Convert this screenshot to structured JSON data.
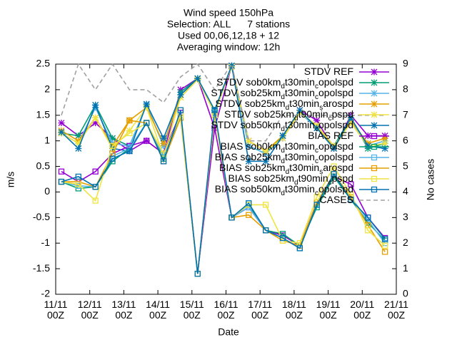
{
  "chart_data": {
    "type": "line",
    "title": [
      "Wind speed 150hPa",
      "Selection: ALL      7 stations",
      "Used 00,06,12,18 + 12",
      "Averaging window: 12h"
    ],
    "xlabel": "Date",
    "ylabel": "m/s",
    "y2label": "No cases",
    "x": [
      4,
      16,
      28,
      40,
      52,
      64,
      76,
      88,
      100,
      112,
      124,
      136,
      148,
      160,
      172,
      184,
      196,
      208,
      220,
      232
    ],
    "xlim": [
      0,
      240
    ],
    "xticks": [
      {
        "value": 0,
        "label": "11/11 00Z"
      },
      {
        "value": 24,
        "label": "12/11 00Z"
      },
      {
        "value": 48,
        "label": "13/11 00Z"
      },
      {
        "value": 72,
        "label": "14/11 00Z"
      },
      {
        "value": 96,
        "label": "15/11 00Z"
      },
      {
        "value": 120,
        "label": "16/11 00Z"
      },
      {
        "value": 144,
        "label": "17/11 00Z"
      },
      {
        "value": 168,
        "label": "18/11 00Z"
      },
      {
        "value": 192,
        "label": "19/11 00Z"
      },
      {
        "value": 216,
        "label": "20/11 00Z"
      },
      {
        "value": 240,
        "label": "21/11 00Z"
      }
    ],
    "ylim": [
      -2,
      2.5
    ],
    "yticks": [
      -2,
      -1.5,
      -1,
      -0.5,
      0,
      0.5,
      1,
      1.5,
      2,
      2.5
    ],
    "y2lim": [
      0,
      9
    ],
    "y2ticks": [
      0,
      1,
      2,
      3,
      4,
      5,
      6,
      7,
      8,
      9
    ],
    "grid": false,
    "legend": "top-right",
    "series": [
      {
        "name": "STDV REF",
        "color": "#9400d3",
        "marker": "star",
        "values": [
          1.35,
          1.1,
          1.35,
          1.05,
          0.8,
          1.0,
          0.75,
          2.0,
          2.22,
          1.25,
          2.47,
          1.0,
          0.8,
          1.05,
          1.6,
          1.4,
          0.85,
          1.5,
          1.1,
          1.1
        ]
      },
      {
        "name": "STDV sob0km_dt30min_copolspd",
        "color": "#009e73",
        "marker": "star",
        "values": [
          1.15,
          1.1,
          1.7,
          1.05,
          0.9,
          1.7,
          0.9,
          1.95,
          2.22,
          1.6,
          2.47,
          0.9,
          0.75,
          1.1,
          1.55,
          1.3,
          0.9,
          1.45,
          0.85,
          0.95
        ]
      },
      {
        "name": "STDV sob25km_dt30min_copolspd",
        "color": "#56b4e9",
        "marker": "star",
        "values": [
          1.15,
          0.95,
          1.65,
          0.95,
          0.9,
          1.7,
          0.9,
          1.9,
          2.2,
          1.6,
          2.47,
          0.9,
          0.75,
          1.05,
          1.55,
          1.25,
          0.85,
          1.4,
          0.9,
          1.0
        ]
      },
      {
        "name": "STDV sob25km_dt30min_sarospd",
        "color": "#e69f00",
        "marker": "star",
        "values": [
          1.2,
          1.0,
          1.45,
          0.9,
          1.4,
          1.65,
          0.95,
          1.85,
          2.2,
          1.55,
          2.45,
          1.0,
          0.8,
          1.1,
          1.55,
          1.3,
          0.85,
          1.4,
          0.95,
          1.05
        ]
      },
      {
        "name": "STDV sob25km_dt90min_cpspd",
        "color": "#f0e442",
        "marker": "star",
        "values": [
          1.15,
          0.95,
          1.45,
          0.85,
          1.2,
          1.65,
          0.7,
          1.85,
          2.2,
          1.55,
          2.45,
          1.0,
          0.8,
          1.05,
          1.55,
          1.3,
          0.9,
          1.35,
          0.9,
          0.95
        ]
      },
      {
        "name": "STDV sob50km_dt30min_copolspd",
        "color": "#0072b2",
        "marker": "star",
        "values": [
          1.17,
          0.85,
          1.7,
          0.85,
          0.8,
          1.72,
          1.05,
          1.9,
          2.22,
          1.6,
          2.47,
          0.6,
          0.6,
          1.1,
          1.6,
          1.25,
          0.85,
          1.45,
          0.9,
          0.85
        ]
      },
      {
        "name": "BIAS REF",
        "color": "#9400d3",
        "marker": "square",
        "values": [
          0.4,
          0.2,
          0.4,
          0.75,
          0.9,
          1.0,
          0.75,
          1.55,
          -1.6,
          1.25,
          -0.5,
          -0.3,
          -0.75,
          -0.85,
          -1.05,
          -0.2,
          0.3,
          0.15,
          -0.5,
          -0.9
        ]
      },
      {
        "name": "BIAS sob0km_dt30min_copolspd",
        "color": "#009e73",
        "marker": "square",
        "values": [
          0.2,
          0.07,
          0.1,
          0.6,
          0.85,
          1.35,
          0.65,
          1.5,
          -1.6,
          1.55,
          -0.5,
          -0.25,
          -0.75,
          -0.82,
          -1.05,
          -0.3,
          0.3,
          -0.15,
          -0.6,
          -0.95
        ]
      },
      {
        "name": "BIAS sob25km_dt30min_copolspd",
        "color": "#56b4e9",
        "marker": "square",
        "values": [
          0.2,
          0.12,
          0.1,
          0.7,
          0.85,
          1.35,
          0.7,
          1.5,
          -1.6,
          1.55,
          -0.5,
          -0.3,
          -0.75,
          -0.9,
          -1.1,
          -0.25,
          0.35,
          -0.1,
          -0.55,
          -1.0
        ]
      },
      {
        "name": "BIAS sob25km_dt30min_sarospd",
        "color": "#e69f00",
        "marker": "square",
        "values": [
          0.2,
          0.2,
          0.1,
          0.75,
          1.4,
          1.35,
          0.6,
          1.45,
          -1.6,
          1.5,
          -0.5,
          -0.45,
          -0.75,
          -0.95,
          -1.05,
          -0.2,
          0.35,
          -0.1,
          -0.65,
          -1.17
        ]
      },
      {
        "name": "BIAS sob25km_dt90min_cpspd",
        "color": "#f0e442",
        "marker": "square",
        "values": [
          0.2,
          0.15,
          -0.17,
          0.9,
          1.15,
          1.35,
          0.75,
          1.5,
          -1.6,
          1.5,
          -0.5,
          -0.25,
          -0.25,
          -0.95,
          -1.0,
          -0.1,
          0.5,
          -0.05,
          -0.75,
          -1.05
        ]
      },
      {
        "name": "BIAS sob50km_dt30min_copolspd",
        "color": "#0072b2",
        "marker": "square",
        "values": [
          0.2,
          0.3,
          0.1,
          0.65,
          0.8,
          1.35,
          0.6,
          1.6,
          -1.6,
          1.6,
          -0.5,
          -0.22,
          -0.75,
          -0.9,
          -1.1,
          -0.25,
          0.35,
          -0.15,
          -0.5,
          -0.92
        ]
      },
      {
        "name": "CASES",
        "color": "#a0a0a0",
        "marker": "none",
        "dash": true,
        "axis": "y2",
        "values": [
          7,
          9,
          8,
          9,
          8,
          8,
          7.5,
          8.5,
          9,
          8,
          9,
          6,
          6,
          7,
          7,
          7,
          7,
          7,
          7,
          7
        ]
      }
    ]
  }
}
